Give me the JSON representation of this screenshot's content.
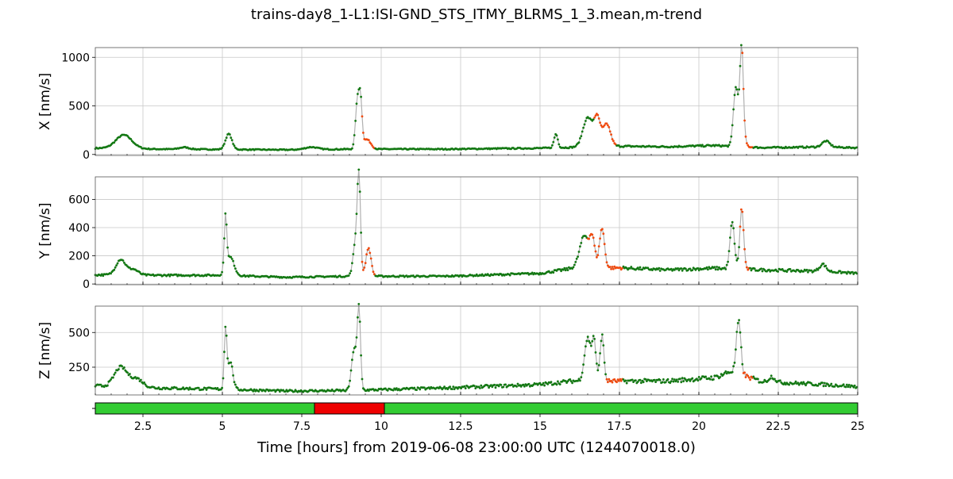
{
  "figure": {
    "title": "trains-day8_1-L1:ISI-GND_STS_ITMY_BLRMS_1_3.mean,m-trend",
    "xlabel": "Time [hours] from 2019-06-08 23:00:00 UTC (1244070018.0)"
  },
  "colors": {
    "normal": "#137813",
    "flagged": "#f04a0f",
    "line": "#b0b0b0",
    "grid": "#c8c8c8",
    "state_on": "#33cc33",
    "state_off": "#ee0000"
  },
  "chart_data": [
    {
      "type": "line",
      "ylabel": "X [nm/s]",
      "xlim": [
        1,
        25
      ],
      "ylim": [
        -10,
        1100
      ],
      "yticks": [
        0,
        500,
        1000
      ],
      "grid": true,
      "baseline": [
        [
          1,
          65
        ],
        [
          3,
          55
        ],
        [
          5,
          52
        ],
        [
          7,
          48
        ],
        [
          9,
          55
        ],
        [
          12,
          55
        ],
        [
          15,
          65
        ],
        [
          17.5,
          85
        ],
        [
          19,
          80
        ],
        [
          20.5,
          92
        ],
        [
          22,
          70
        ],
        [
          24,
          78
        ],
        [
          25,
          68
        ]
      ],
      "bumps": [
        {
          "x": 1.9,
          "h": 140,
          "w": 0.25
        },
        {
          "x": 3.8,
          "h": 20,
          "w": 0.15
        },
        {
          "x": 5.2,
          "h": 160,
          "w": 0.1
        },
        {
          "x": 7.8,
          "h": 25,
          "w": 0.2
        },
        {
          "x": 9.25,
          "h": 480,
          "w": 0.06
        },
        {
          "x": 9.35,
          "h": 450,
          "w": 0.05
        },
        {
          "x": 9.55,
          "h": 100,
          "w": 0.12
        },
        {
          "x": 15.5,
          "h": 140,
          "w": 0.06
        },
        {
          "x": 16.5,
          "h": 300,
          "w": 0.15
        },
        {
          "x": 16.8,
          "h": 280,
          "w": 0.1
        },
        {
          "x": 17.1,
          "h": 230,
          "w": 0.12
        },
        {
          "x": 21.15,
          "h": 500,
          "w": 0.07
        },
        {
          "x": 21.35,
          "h": 780,
          "w": 0.05
        },
        {
          "x": 21.3,
          "h": 300,
          "w": 0.1
        },
        {
          "x": 24,
          "h": 60,
          "w": 0.12
        }
      ],
      "flagged_ranges": [
        [
          9.4,
          9.8
        ],
        [
          16.7,
          17.4
        ],
        [
          21.35,
          21.7
        ]
      ]
    },
    {
      "type": "line",
      "ylabel": "Y [nm/s]",
      "xlim": [
        1,
        25
      ],
      "ylim": [
        -5,
        760
      ],
      "yticks": [
        0,
        200,
        400,
        600
      ],
      "grid": true,
      "baseline": [
        [
          1,
          65
        ],
        [
          3,
          62
        ],
        [
          5,
          62
        ],
        [
          7,
          48
        ],
        [
          9,
          55
        ],
        [
          12,
          55
        ],
        [
          15,
          75
        ],
        [
          16,
          110
        ],
        [
          17.5,
          115
        ],
        [
          19,
          100
        ],
        [
          20.5,
          112
        ],
        [
          22,
          100
        ],
        [
          24,
          90
        ],
        [
          25,
          75
        ]
      ],
      "bumps": [
        {
          "x": 1.8,
          "h": 110,
          "w": 0.15
        },
        {
          "x": 2.2,
          "h": 40,
          "w": 0.15
        },
        {
          "x": 5.1,
          "h": 380,
          "w": 0.04
        },
        {
          "x": 5.25,
          "h": 130,
          "w": 0.12
        },
        {
          "x": 9.3,
          "h": 640,
          "w": 0.05
        },
        {
          "x": 9.2,
          "h": 250,
          "w": 0.08
        },
        {
          "x": 9.6,
          "h": 200,
          "w": 0.08
        },
        {
          "x": 16.4,
          "h": 230,
          "w": 0.15
        },
        {
          "x": 16.65,
          "h": 180,
          "w": 0.08
        },
        {
          "x": 16.95,
          "h": 280,
          "w": 0.08
        },
        {
          "x": 21.05,
          "h": 330,
          "w": 0.07
        },
        {
          "x": 21.35,
          "h": 430,
          "w": 0.06
        },
        {
          "x": 23.9,
          "h": 50,
          "w": 0.1
        }
      ],
      "flagged_ranges": [
        [
          9.4,
          9.8
        ],
        [
          16.5,
          17.6
        ],
        [
          21.3,
          21.6
        ]
      ]
    },
    {
      "type": "line",
      "ylabel": "Z [nm/s]",
      "xlim": [
        1,
        25
      ],
      "ylim": [
        50,
        690
      ],
      "yticks": [
        250,
        500
      ],
      "grid": true,
      "baseline": [
        [
          1,
          115
        ],
        [
          3,
          100
        ],
        [
          5,
          92
        ],
        [
          7,
          78
        ],
        [
          9,
          82
        ],
        [
          12,
          100
        ],
        [
          15,
          125
        ],
        [
          16,
          150
        ],
        [
          17.5,
          150
        ],
        [
          19,
          150
        ],
        [
          20.5,
          175
        ],
        [
          21,
          220
        ],
        [
          22,
          145
        ],
        [
          24,
          125
        ],
        [
          25,
          110
        ]
      ],
      "bumps": [
        {
          "x": 1.8,
          "h": 140,
          "w": 0.2
        },
        {
          "x": 2.3,
          "h": 60,
          "w": 0.2
        },
        {
          "x": 5.1,
          "h": 430,
          "w": 0.04
        },
        {
          "x": 5.25,
          "h": 200,
          "w": 0.08
        },
        {
          "x": 9.3,
          "h": 560,
          "w": 0.05
        },
        {
          "x": 9.15,
          "h": 300,
          "w": 0.08
        },
        {
          "x": 16.5,
          "h": 310,
          "w": 0.1
        },
        {
          "x": 16.7,
          "h": 280,
          "w": 0.06
        },
        {
          "x": 16.95,
          "h": 330,
          "w": 0.06
        },
        {
          "x": 21.25,
          "h": 380,
          "w": 0.07
        },
        {
          "x": 22.3,
          "h": 40,
          "w": 0.1
        }
      ],
      "flagged_ranges": [
        [
          17.1,
          17.6
        ],
        [
          21.4,
          21.7
        ]
      ]
    }
  ],
  "state_segments": [
    {
      "start": 1,
      "end": 7.9,
      "state": "on"
    },
    {
      "start": 7.9,
      "end": 10.1,
      "state": "off"
    },
    {
      "start": 10.1,
      "end": 25,
      "state": "on"
    }
  ],
  "xaxis": {
    "xlim": [
      1,
      25
    ],
    "ticks": [
      2.5,
      5,
      7.5,
      10,
      12.5,
      15,
      17.5,
      20,
      22.5,
      25
    ],
    "tick_labels": [
      "2.5",
      "5",
      "7.5",
      "10",
      "12.5",
      "15",
      "17.5",
      "20",
      "22.5",
      "25"
    ]
  }
}
